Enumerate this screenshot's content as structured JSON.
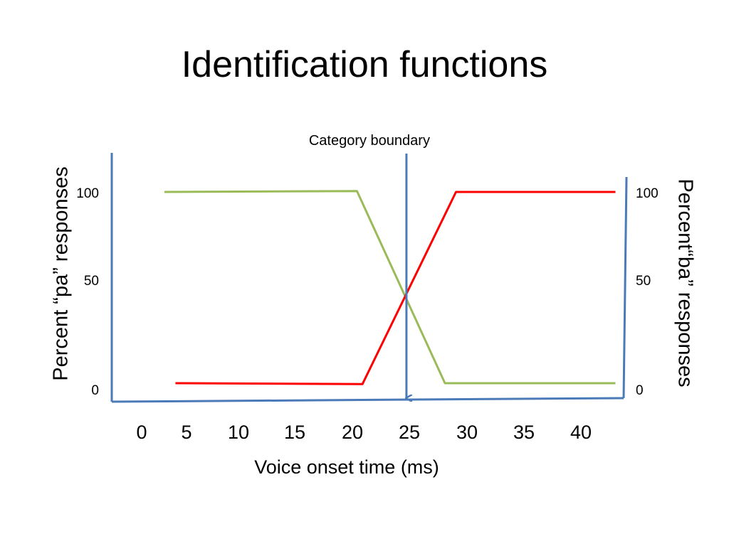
{
  "slide": {
    "title": "Identification functions"
  },
  "colors": {
    "axis": "#4a7ab8",
    "pa_series": "#9bbb59",
    "ba_series": "#ff0000",
    "boundary": "#4a7ab8"
  },
  "chart_data": {
    "type": "line",
    "title": "",
    "xlabel": "Voice onset time (ms)",
    "ylabel_left": "Percent “pa” responses",
    "ylabel_right": "Percent“ba” responses",
    "xlim": [
      0,
      44
    ],
    "ylim": [
      0,
      100
    ],
    "x_ticks": [
      "0",
      "5",
      "10",
      "15",
      "20",
      "25",
      "30",
      "35",
      "40"
    ],
    "y_ticks_left": [
      "0",
      "50",
      "100"
    ],
    "y_ticks_right": [
      "0",
      "50",
      "100"
    ],
    "series": [
      {
        "color": "#9bbb59",
        "axis": "left",
        "points": [
          [
            2,
            100
          ],
          [
            19.5,
            100.5
          ],
          [
            27.5,
            0
          ],
          [
            43,
            0
          ]
        ]
      },
      {
        "color": "#ff0000",
        "axis": "right",
        "points": [
          [
            3,
            0
          ],
          [
            20,
            -0.5
          ],
          [
            28.5,
            100
          ],
          [
            43,
            100
          ]
        ]
      }
    ],
    "annotations": [
      {
        "label": "Category boundary",
        "x": 24,
        "type": "vertical-arrow"
      }
    ]
  }
}
